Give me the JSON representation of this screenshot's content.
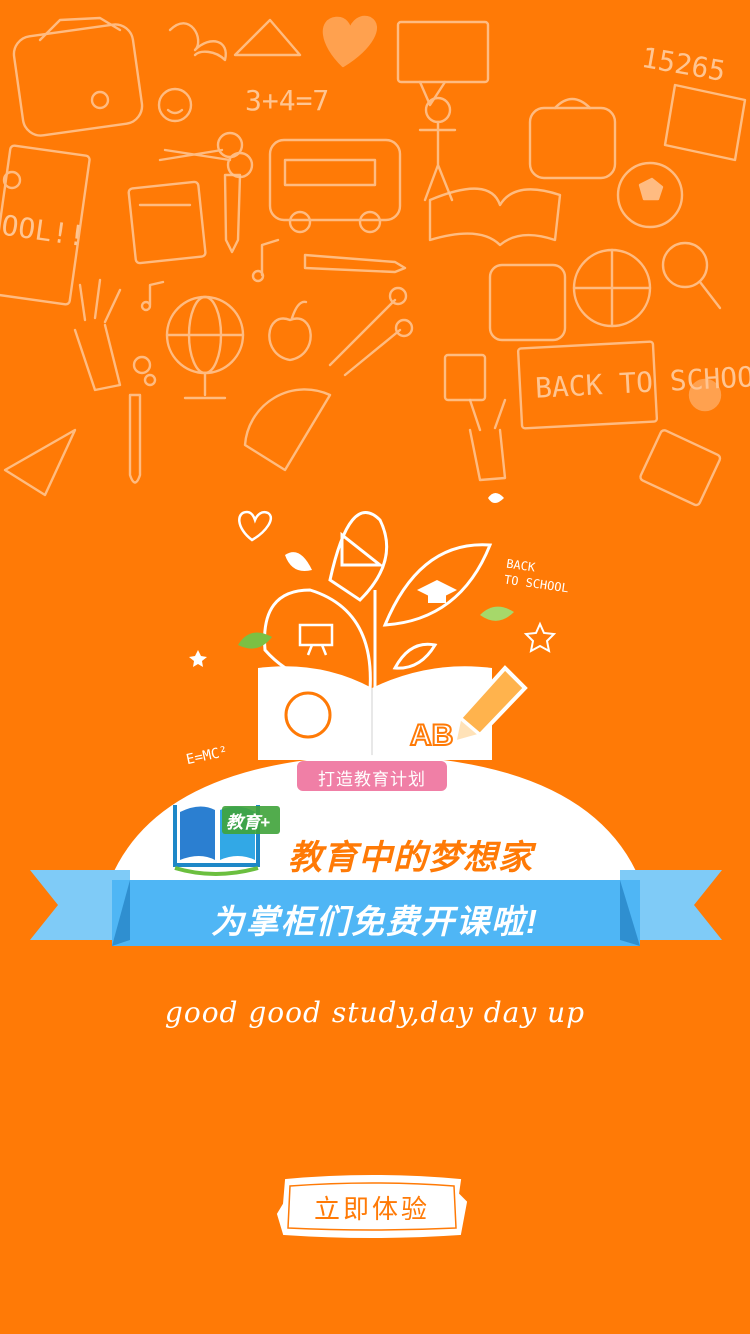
{
  "theme": {
    "background": "#ff7a06",
    "accent_blue": "#4fb6f5",
    "pill_pink": "#f07fa6"
  },
  "doodle_text": {
    "math": "3+4=7",
    "number": "15265",
    "sign_left": "OOL!!",
    "sign_right": "BACK TO SCHOOL!!"
  },
  "illustration": {
    "back_to_school": "BACK\nTO SCHOOL",
    "formula": "E=MC²",
    "logo_label": "教育+",
    "tag": "打造教育计划",
    "app_title": "教育中的梦想家",
    "banner": "为掌柜们免费开课啦!"
  },
  "motto": "good good study,day day up",
  "cta": {
    "label": "立即体验"
  }
}
